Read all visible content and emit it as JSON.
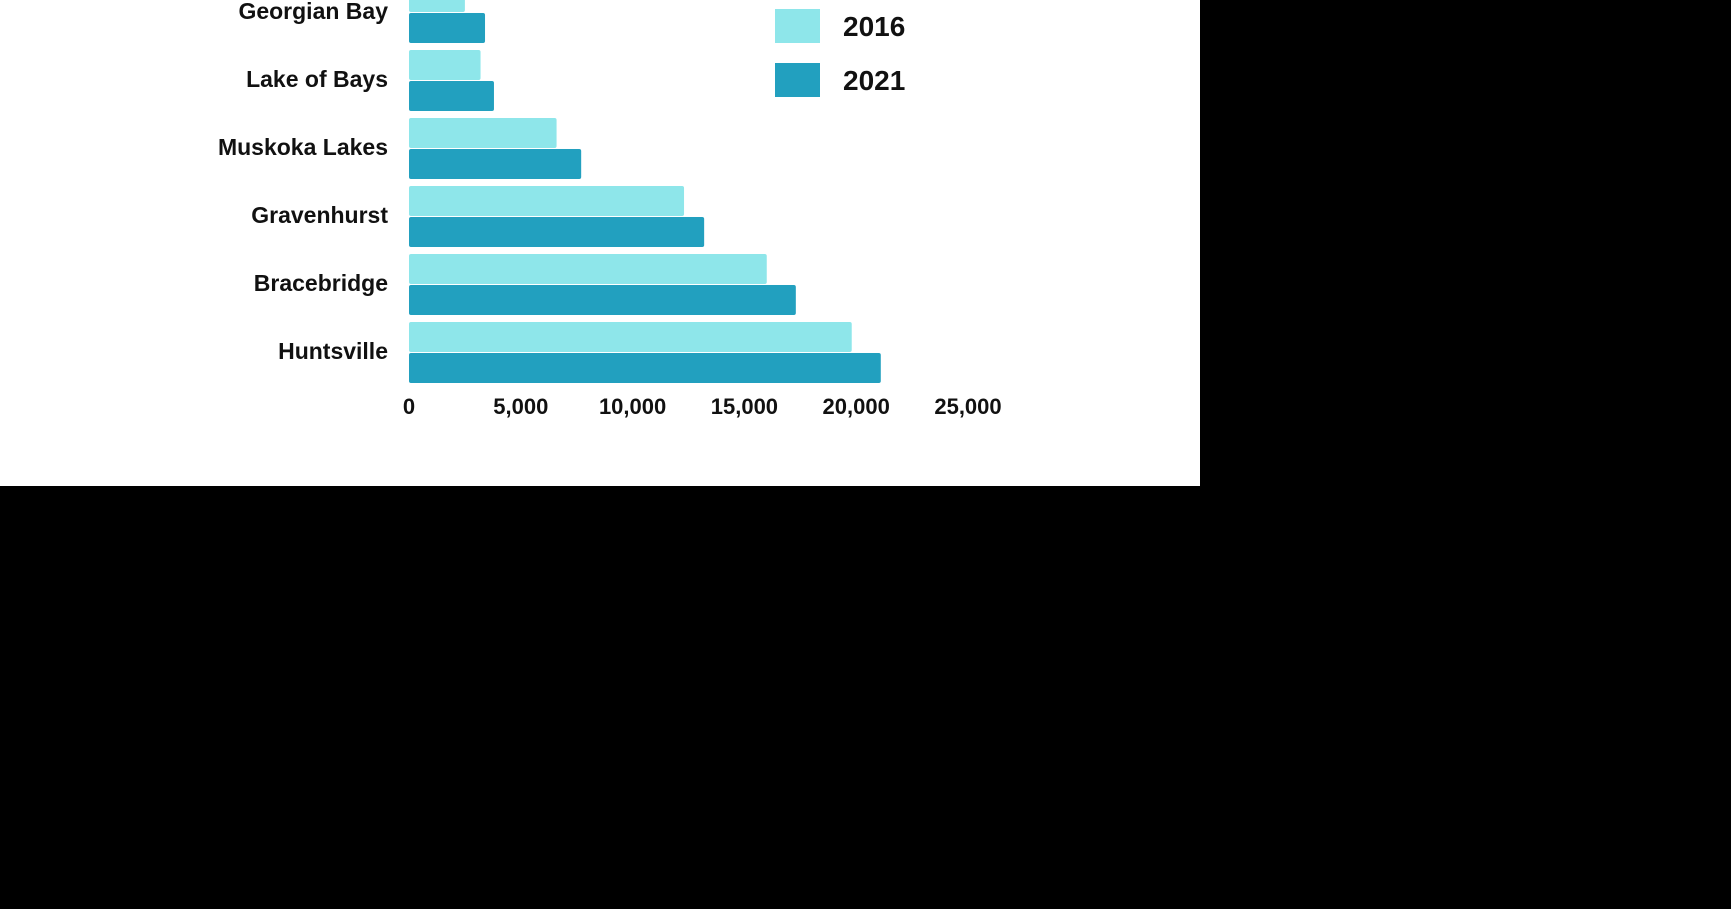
{
  "chart_data": {
    "type": "bar",
    "orientation": "horizontal",
    "categories": [
      "Georgian Bay",
      "Lake of Bays",
      "Muskoka Lakes",
      "Gravenhurst",
      "Bracebridge",
      "Huntsville"
    ],
    "series": [
      {
        "name": "2016",
        "color": "#8ee6ea",
        "values": [
          2500,
          3200,
          6600,
          12300,
          16000,
          19800
        ]
      },
      {
        "name": "2021",
        "color": "#22a0bf",
        "values": [
          3400,
          3800,
          7700,
          13200,
          17300,
          21100
        ]
      }
    ],
    "x_ticks": [
      "0",
      "5,000",
      "10,000",
      "15,000",
      "20,000",
      "25,000"
    ],
    "xlim": [
      0,
      25000
    ],
    "legend_position": "top-right",
    "grid": false
  }
}
